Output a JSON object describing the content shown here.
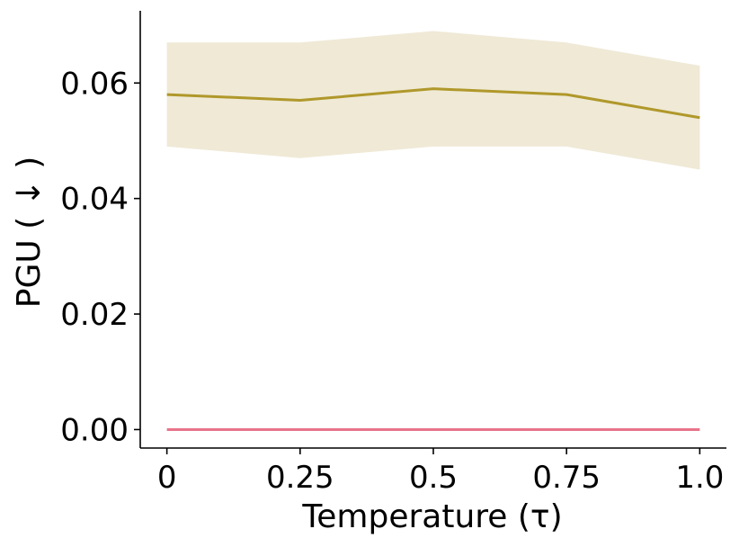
{
  "chart_data": {
    "type": "line",
    "xlabel": "Temperature (τ)",
    "ylabel": "PGU ( ↓ )",
    "x": [
      0,
      0.25,
      0.5,
      0.75,
      1.0
    ],
    "x_tick_labels": [
      "0",
      "0.25",
      "0.5",
      "0.75",
      "1.0"
    ],
    "y_ticks": [
      0.0,
      0.02,
      0.04,
      0.06
    ],
    "y_tick_labels": [
      "0.00",
      "0.02",
      "0.04",
      "0.06"
    ],
    "xlim": [
      -0.05,
      1.05
    ],
    "ylim": [
      -0.0032,
      0.0725
    ],
    "grid": false,
    "series": [
      {
        "color": "#b0982a",
        "band_color": "#efe9d6",
        "values": [
          0.058,
          0.057,
          0.059,
          0.058,
          0.054
        ],
        "upper": [
          0.067,
          0.067,
          0.069,
          0.067,
          0.063
        ],
        "lower": [
          0.049,
          0.047,
          0.049,
          0.049,
          0.045
        ]
      },
      {
        "color": "#e8748a",
        "values": [
          0.0,
          0.0,
          0.0,
          0.0,
          0.0
        ]
      }
    ]
  }
}
